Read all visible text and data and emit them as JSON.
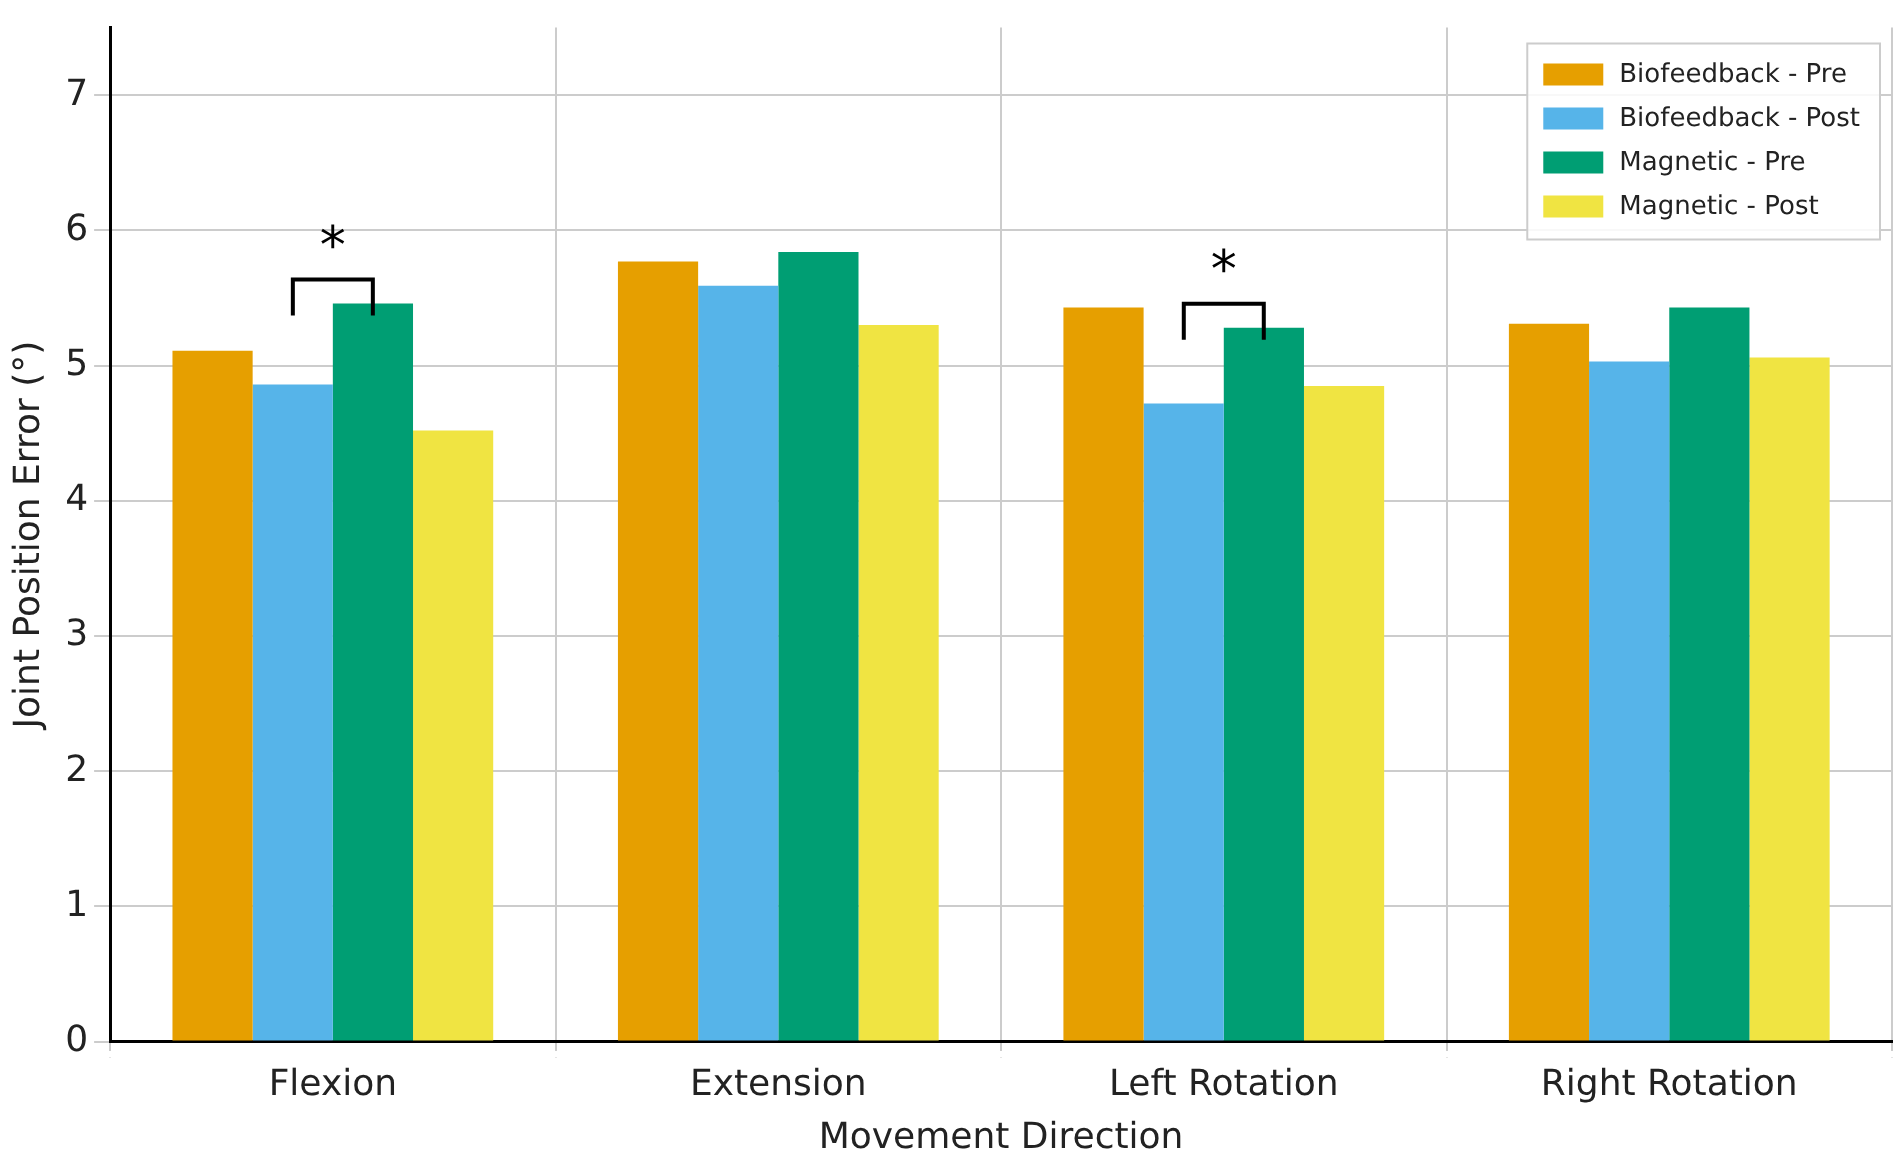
{
  "chart_data": {
    "type": "bar",
    "xlabel": "Movement Direction",
    "ylabel": "Joint Position Error (°)",
    "categories": [
      "Flexion",
      "Extension",
      "Left Rotation",
      "Right Rotation"
    ],
    "series": [
      {
        "name": "Biofeedback - Pre",
        "color": "#e69f00",
        "values": [
          5.11,
          5.77,
          5.43,
          5.31
        ]
      },
      {
        "name": "Biofeedback - Post",
        "color": "#56b4e9",
        "values": [
          4.86,
          5.59,
          4.72,
          5.03
        ]
      },
      {
        "name": "Magnetic - Pre",
        "color": "#009e73",
        "values": [
          5.46,
          5.84,
          5.28,
          5.43
        ]
      },
      {
        "name": "Magnetic - Post",
        "color": "#f0e442",
        "values": [
          4.52,
          5.3,
          4.85,
          5.06
        ]
      }
    ],
    "ylim": [
      0,
      7.5
    ],
    "yticks": [
      0,
      1,
      2,
      3,
      4,
      5,
      6,
      7
    ],
    "grid": true,
    "legend": "top right",
    "annotations": [
      {
        "text": "*",
        "x": "Flexion",
        "y": 5.46
      },
      {
        "text": "*",
        "x": "Left Rotation",
        "y": 5.28
      }
    ]
  }
}
